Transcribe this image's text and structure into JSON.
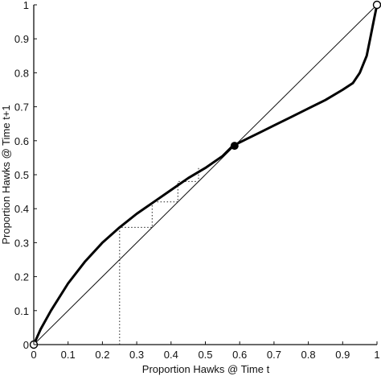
{
  "chart_data": {
    "type": "line",
    "xlabel": "Proportion Hawks @ Time t",
    "ylabel": "Proportion Hawks @ Time t+1",
    "xlim": [
      0,
      1
    ],
    "ylim": [
      0,
      1
    ],
    "x_ticks": [
      "0",
      "0.1",
      "0.2",
      "0.3",
      "0.4",
      "0.5",
      "0.6",
      "0.7",
      "0.8",
      "0.9",
      "1"
    ],
    "y_ticks": [
      "0",
      "0.1",
      "0.2",
      "0.3",
      "0.4",
      "0.5",
      "0.6",
      "0.7",
      "0.8",
      "0.9",
      "1"
    ],
    "grid": false,
    "series": [
      {
        "style": "thin",
        "x": [
          0,
          1
        ],
        "y": [
          0,
          1
        ]
      },
      {
        "style": "thick",
        "x": [
          0,
          0.02,
          0.05,
          0.1,
          0.15,
          0.2,
          0.25,
          0.3,
          0.35,
          0.4,
          0.45,
          0.5,
          0.55,
          0.58,
          0.62,
          0.66,
          0.7,
          0.75,
          0.8,
          0.85,
          0.9,
          0.93,
          0.95,
          0.97,
          0.98,
          0.99,
          1.0
        ],
        "y": [
          0,
          0.045,
          0.1,
          0.18,
          0.245,
          0.3,
          0.345,
          0.385,
          0.42,
          0.455,
          0.49,
          0.52,
          0.555,
          0.585,
          0.605,
          0.625,
          0.645,
          0.67,
          0.695,
          0.72,
          0.75,
          0.77,
          0.8,
          0.85,
          0.9,
          0.95,
          1.0
        ]
      },
      {
        "style": "dotted",
        "x": [
          0.25,
          0.25,
          0.345,
          0.345,
          0.42,
          0.42,
          0.48,
          0.48
        ],
        "y": [
          0,
          0.345,
          0.345,
          0.42,
          0.42,
          0.48,
          0.48,
          0.52
        ]
      }
    ],
    "points": [
      {
        "x": 0,
        "y": 0,
        "filled": false
      },
      {
        "x": 0.585,
        "y": 0.585,
        "filled": true
      },
      {
        "x": 1,
        "y": 1,
        "filled": false
      }
    ]
  }
}
